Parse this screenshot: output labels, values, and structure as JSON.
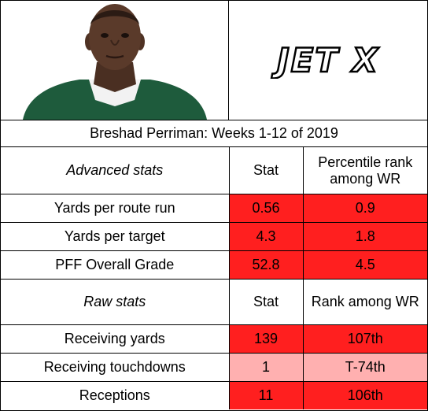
{
  "title": "Breshad Perriman: Weeks 1-12 of 2019",
  "logo_text": "JET X",
  "colors": {
    "strong_red": "#ff1f1f",
    "light_red": "#ffb0b0",
    "jersey_green": "#1e5b3c"
  },
  "advanced": {
    "header": {
      "label": "Advanced stats",
      "stat": "Stat",
      "rank": "Percentile rank among WR"
    },
    "rows": [
      {
        "label": "Yards per route run",
        "stat": "0.56",
        "rank": "0.9"
      },
      {
        "label": "Yards per target",
        "stat": "4.3",
        "rank": "1.8"
      },
      {
        "label": "PFF Overall Grade",
        "stat": "52.8",
        "rank": "4.5"
      }
    ]
  },
  "raw": {
    "header": {
      "label": "Raw stats",
      "stat": "Stat",
      "rank": "Rank among WR"
    },
    "rows": [
      {
        "label": "Receiving yards",
        "stat": "139",
        "rank": "107th"
      },
      {
        "label": "Receiving touchdowns",
        "stat": "1",
        "rank": "T-74th"
      },
      {
        "label": "Receptions",
        "stat": "11",
        "rank": "106th"
      }
    ]
  }
}
